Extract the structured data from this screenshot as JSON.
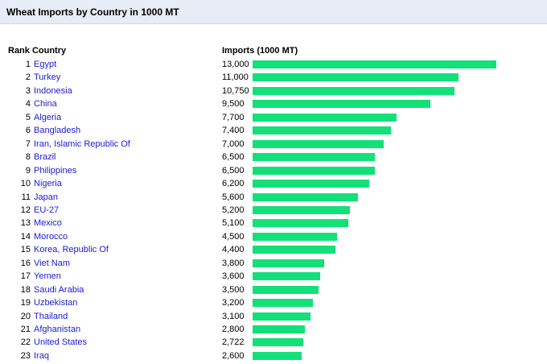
{
  "title": "Wheat Imports by Country in 1000 MT",
  "headers": {
    "rank_country": "Rank Country",
    "imports": "Imports (1000 MT)"
  },
  "colors": {
    "bar": "#14e07a",
    "link": "#1a1adc",
    "title_bg": "#e8ecf7"
  },
  "chart_data": {
    "type": "bar",
    "orientation": "horizontal",
    "title": "Wheat Imports by Country in 1000 MT",
    "value_label": "Imports (1000 MT)",
    "categories": [
      "Egypt",
      "Turkey",
      "Indonesia",
      "China",
      "Algeria",
      "Bangladesh",
      "Iran, Islamic Republic Of",
      "Brazil",
      "Philippines",
      "Nigeria",
      "Japan",
      "EU-27",
      "Mexico",
      "Morocco",
      "Korea, Republic Of",
      "Viet Nam",
      "Yemen",
      "Saudi Arabia",
      "Uzbekistan",
      "Thailand",
      "Afghanistan",
      "United States",
      "Iraq"
    ],
    "value_labels": [
      "13,000",
      "11,000",
      "10,750",
      "9,500",
      "7,700",
      "7,400",
      "7,000",
      "6,500",
      "6,500",
      "6,200",
      "5,600",
      "5,200",
      "5,100",
      "4,500",
      "4,400",
      "3,800",
      "3,600",
      "3,500",
      "3,200",
      "3,100",
      "2,800",
      "2,722",
      "2,600"
    ],
    "values": [
      13000,
      11000,
      10750,
      9500,
      7700,
      7400,
      7000,
      6500,
      6500,
      6200,
      5600,
      5200,
      5100,
      4500,
      4400,
      3800,
      3600,
      3500,
      3200,
      3100,
      2800,
      2722,
      2600
    ],
    "xlim": [
      0,
      13000
    ]
  }
}
